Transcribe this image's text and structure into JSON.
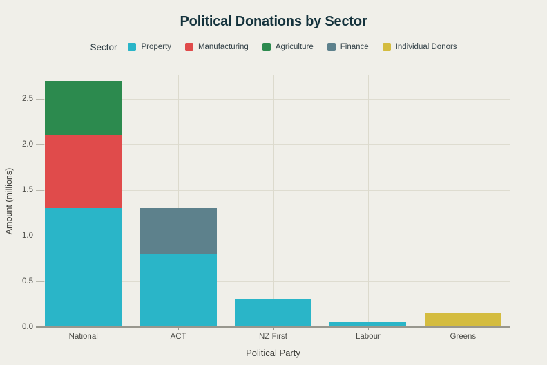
{
  "title": "Political Donations by Sector",
  "legend": {
    "label": "Sector",
    "items": [
      {
        "label": "Property",
        "color": "#2ab5c8"
      },
      {
        "label": "Manufacturing",
        "color": "#e04b4b"
      },
      {
        "label": "Agriculture",
        "color": "#2c8a4e"
      },
      {
        "label": "Finance",
        "color": "#5d818c"
      },
      {
        "label": "Individual Donors",
        "color": "#d4bc3f"
      }
    ]
  },
  "chart_data": {
    "type": "bar",
    "stacked": true,
    "title": "Political Donations by Sector",
    "xlabel": "Political Party",
    "ylabel": "Amount (millions)",
    "categories": [
      "National",
      "ACT",
      "NZ First",
      "Labour",
      "Greens"
    ],
    "series": [
      {
        "name": "Property",
        "color": "#2ab5c8",
        "values": [
          1.3,
          0.8,
          0.3,
          0.05,
          0
        ]
      },
      {
        "name": "Manufacturing",
        "color": "#e04b4b",
        "values": [
          0.8,
          0,
          0,
          0,
          0
        ]
      },
      {
        "name": "Agriculture",
        "color": "#2c8a4e",
        "values": [
          0.6,
          0,
          0,
          0,
          0
        ]
      },
      {
        "name": "Finance",
        "color": "#5d818c",
        "values": [
          0,
          0.5,
          0,
          0,
          0
        ]
      },
      {
        "name": "Individual Donors",
        "color": "#d4bc3f",
        "values": [
          0,
          0,
          0,
          0,
          0.15
        ]
      }
    ],
    "totals": {
      "National": 2.7,
      "ACT": 1.3,
      "NZ First": 0.3,
      "Labour": 0.05,
      "Greens": 0.15
    },
    "ylim": [
      0,
      2.75
    ],
    "yticks": [
      0.0,
      0.5,
      1.0,
      1.5,
      2.0,
      2.5
    ],
    "ytick_labels": [
      "0.0",
      "0.5",
      "1.0",
      "1.5",
      "2.0",
      "2.5"
    ],
    "grid": true,
    "legend_position": "top"
  },
  "colors": {
    "background": "#f0efe9",
    "title_text": "#14323c",
    "axis_text": "#4c4c47",
    "gridline": "#dedcd0",
    "axis_line": "#98978e"
  }
}
